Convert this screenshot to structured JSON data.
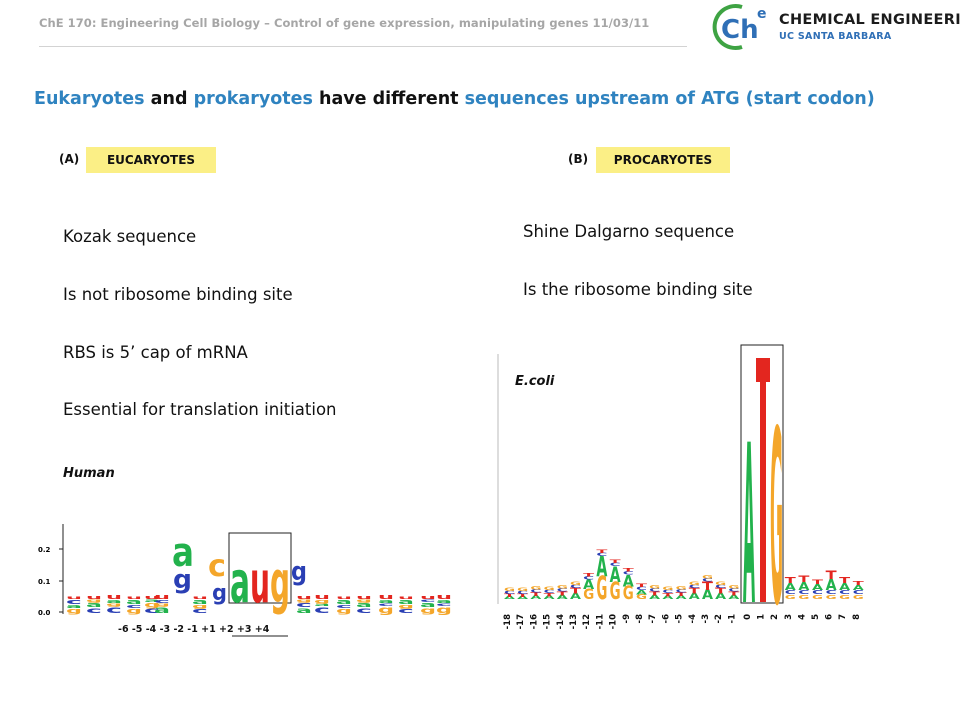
{
  "header": {
    "course_line": "ChE 170: Engineering Cell Biology – Control of gene expression, manipulating genes 11/03/11",
    "logo": {
      "symbol": "Ch",
      "superscript": "e",
      "line1": "CHEMICAL ENGINEERING",
      "line2": "UC SANTA BARBARA",
      "colors": {
        "ring": "#3ea343",
        "text": "#2f6fb6"
      }
    }
  },
  "title": {
    "parts": [
      {
        "text": "Eukaryotes",
        "highlight": true
      },
      {
        "text": " and ",
        "highlight": false
      },
      {
        "text": "prokaryotes",
        "highlight": true
      },
      {
        "text": " have different ",
        "highlight": false
      },
      {
        "text": "sequences upstream of ATG (start codon)",
        "highlight": true
      }
    ],
    "highlight_color": "#2f83c0"
  },
  "panel_a": {
    "letter": "(A)",
    "badge": "EUCARYOTES",
    "lines": [
      "Kozak sequence",
      "Is not ribosome binding site",
      "RBS is 5’ cap of mRNA",
      "Essential for translation initiation"
    ],
    "organism": "Human",
    "logo_plot": {
      "yticks": [
        "0.2",
        "0.1",
        "0.0"
      ],
      "xlabels": "-6 -5 -4 -3 -2 -1 +1 +2 +3 +4",
      "tall_letters": [
        "a",
        "g",
        "c",
        "a",
        "u",
        "g",
        "g"
      ]
    }
  },
  "panel_b": {
    "letter": "(B)",
    "badge": "PROCARYOTES",
    "lines": [
      "Shine Dalgarno sequence",
      "Is the ribosome binding site"
    ],
    "organism": "E.coli",
    "logo_plot": {
      "positions": [
        "-18",
        "-17",
        "-16",
        "-15",
        "-14",
        "-13",
        "-12",
        "-11",
        "-10",
        "-9",
        "-8",
        "-7",
        "-6",
        "-5",
        "-4",
        "-3",
        "-2",
        "-1",
        "0",
        "1",
        "2",
        "3",
        "4",
        "5",
        "6",
        "7",
        "8"
      ],
      "start_codon": [
        "A",
        "T",
        "G"
      ]
    }
  },
  "colors": {
    "badge": "#fbef86",
    "nuc_A": "#22b24c",
    "nuc_C": "#2a3fb4",
    "nuc_G": "#f4a62a",
    "nuc_T": "#e3261f"
  }
}
